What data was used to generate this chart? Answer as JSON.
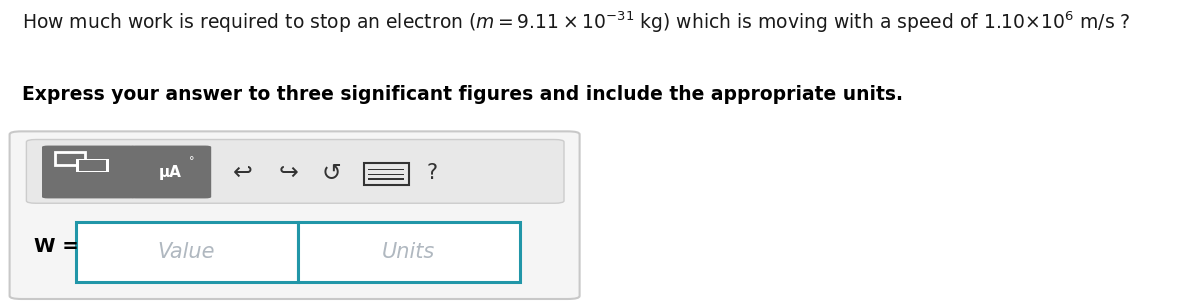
{
  "line1": "How much work is required to stop an electron $(m = 9.11 \\times 10^{-31}$ kg) which is moving with a speed of 1.10$\\times$10$^6$ m/s ?",
  "line2": "Express your answer to three significant figures and include the appropriate units.",
  "label_W": "W =",
  "placeholder_value": "Value",
  "placeholder_units": "Units",
  "bg_color": "#ffffff",
  "box_border": "#c8c8c8",
  "box_fill": "#f5f5f5",
  "toolbar_fill": "#e8e8e8",
  "toolbar_border": "#cccccc",
  "btn_fill": "#707070",
  "input_border": "#2196a8",
  "text_color_main": "#1a1a1a",
  "text_color_bold": "#000000",
  "placeholder_color": "#b0b8c0",
  "icon_color": "#333333",
  "fig_width": 12.0,
  "fig_height": 3.02
}
